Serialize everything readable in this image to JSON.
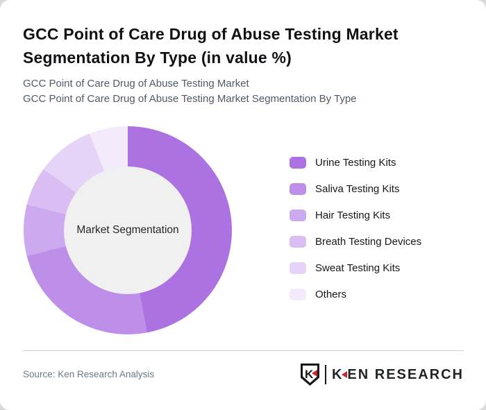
{
  "header": {
    "title": "GCC Point of Care Drug of Abuse Testing Market Segmentation By Type (in value %)",
    "subtitle_line1": "GCC Point of Care Drug of Abuse Testing Market",
    "subtitle_line2": "GCC Point of Care Drug of Abuse Testing Market Segmentation By Type"
  },
  "chart_data": {
    "type": "pie",
    "variant": "donut",
    "title": "GCC Point of Care Drug of Abuse Testing Market Segmentation By Type (in value %)",
    "center_label": "Market Segmentation",
    "categories": [
      "Urine Testing Kits",
      "Saliva Testing Kits",
      "Hair Testing Kits",
      "Breath Testing Devices",
      "Sweat Testing Kits",
      "Others"
    ],
    "values": [
      47,
      24,
      8,
      6,
      9,
      6
    ],
    "value_unit": "%",
    "data_labels_shown": false,
    "values_estimated_from_arc_angles": true,
    "colors": [
      "#ac72e2",
      "#bd8fe9",
      "#cda9ef",
      "#dabdf3",
      "#e6d4f8",
      "#f3ebfc"
    ],
    "legend_position": "right",
    "start_angle_deg": 0,
    "direction": "clockwise",
    "inner_circle_color": "#f0f0f0"
  },
  "footer": {
    "source_text": "Source: Ken Research Analysis",
    "logo": {
      "emblem_letter": "K",
      "brand_first_letter": "K",
      "brand_rest": "EN RESEARCH",
      "accent_red": "#c9252c",
      "text_color": "#212427"
    }
  },
  "colors": {
    "card_bg": "#ffffff",
    "page_bg": "#d9d9d9",
    "title_text": "#101114",
    "subtitle_text": "#4f5a66",
    "legend_text": "#15171a",
    "divider": "#cdcdcd",
    "source_text": "#6d7885"
  }
}
